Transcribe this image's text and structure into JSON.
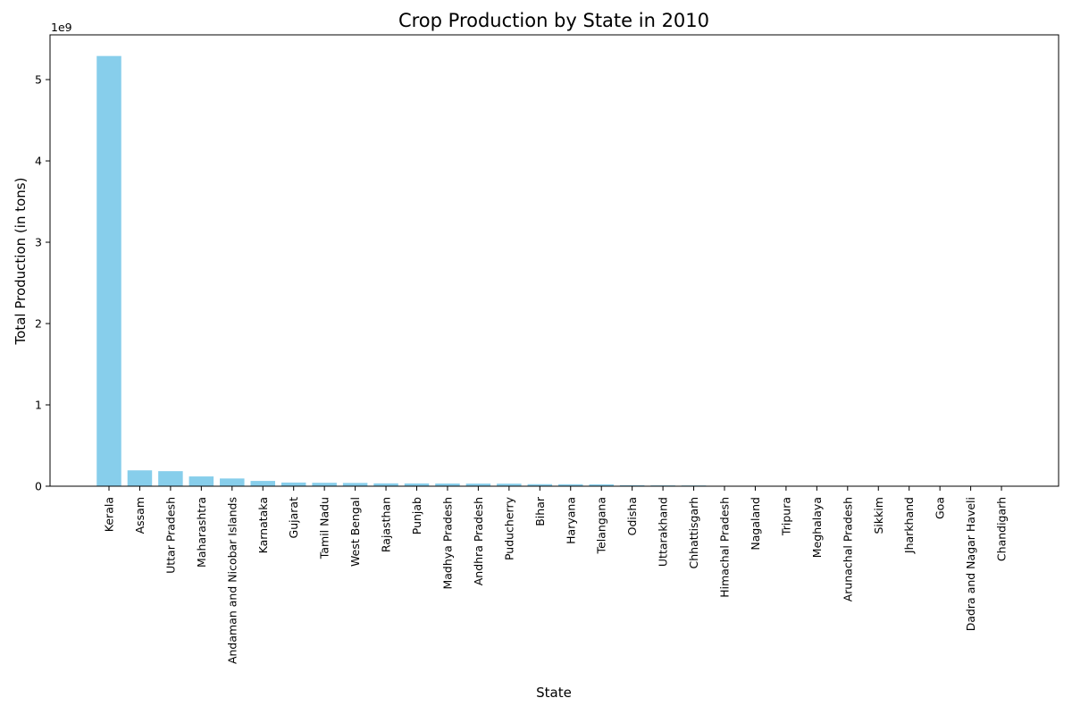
{
  "chart_data": {
    "type": "bar",
    "title": "Crop Production by State in 2010",
    "xlabel": "State",
    "ylabel": "Total Production (in tons)",
    "y_offset_label": "1e9",
    "y_scale": 1000000000,
    "ylim": [
      0,
      5.55
    ],
    "yticks": [
      0,
      1,
      2,
      3,
      4,
      5
    ],
    "grid": false,
    "bar_color": "#87ceeb",
    "categories": [
      "Kerala",
      "Assam",
      "Uttar Pradesh",
      "Maharashtra",
      "Andaman and Nicobar Islands",
      "Karnataka",
      "Gujarat",
      "Tamil Nadu",
      "West Bengal",
      "Rajasthan",
      "Punjab",
      "Madhya Pradesh",
      "Andhra Pradesh",
      "Puducherry",
      "Bihar",
      "Haryana",
      "Telangana",
      "Odisha",
      "Uttarakhand",
      "Chhattisgarh",
      "Himachal Pradesh",
      "Nagaland",
      "Tripura",
      "Meghalaya",
      "Arunachal Pradesh",
      "Sikkim",
      "Jharkhand",
      "Goa",
      "Dadra and Nagar Haveli",
      "Chandigarh"
    ],
    "values": [
      5.29,
      0.195,
      0.185,
      0.12,
      0.095,
      0.065,
      0.045,
      0.042,
      0.04,
      0.035,
      0.034,
      0.033,
      0.032,
      0.031,
      0.025,
      0.024,
      0.023,
      0.012,
      0.01,
      0.009,
      0.004,
      0.003,
      0.002,
      0.002,
      0.001,
      0.001,
      0.001,
      0.0005,
      0.0005,
      0.0002
    ]
  }
}
